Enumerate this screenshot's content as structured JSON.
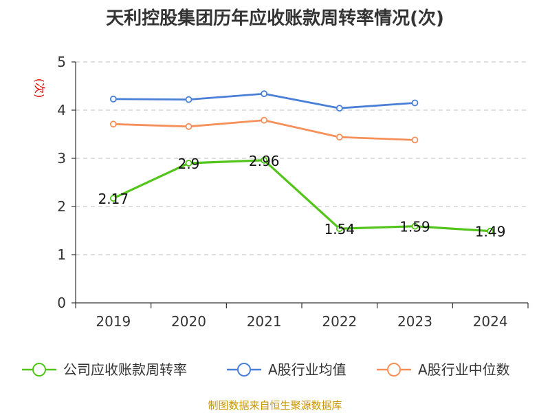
{
  "chart_data": {
    "type": "line",
    "title": "天利控股集团历年应收账款周转率情况(次)",
    "ylabel": "(次)",
    "xlabel": "",
    "categories": [
      "2019",
      "2020",
      "2021",
      "2022",
      "2023",
      "2024"
    ],
    "ylim": [
      0,
      5
    ],
    "yticks": [
      0,
      1,
      2,
      3,
      4,
      5
    ],
    "grid": true,
    "legend_position": "bottom",
    "series": [
      {
        "name": "公司应收账款周转率",
        "color": "#52c41a",
        "values": [
          2.17,
          2.9,
          2.96,
          1.54,
          1.59,
          1.49
        ],
        "labels": [
          "2.17",
          "2.9",
          "2.96",
          "1.54",
          "1.59",
          "1.49"
        ]
      },
      {
        "name": "A股行业均值",
        "color": "#4a7fd8",
        "values": [
          4.23,
          4.22,
          4.34,
          4.04,
          4.15,
          null
        ]
      },
      {
        "name": "A股行业中位数",
        "color": "#f5905a",
        "values": [
          3.71,
          3.66,
          3.79,
          3.44,
          3.38,
          null
        ]
      }
    ]
  },
  "source": "制图数据来自恒生聚源数据库"
}
